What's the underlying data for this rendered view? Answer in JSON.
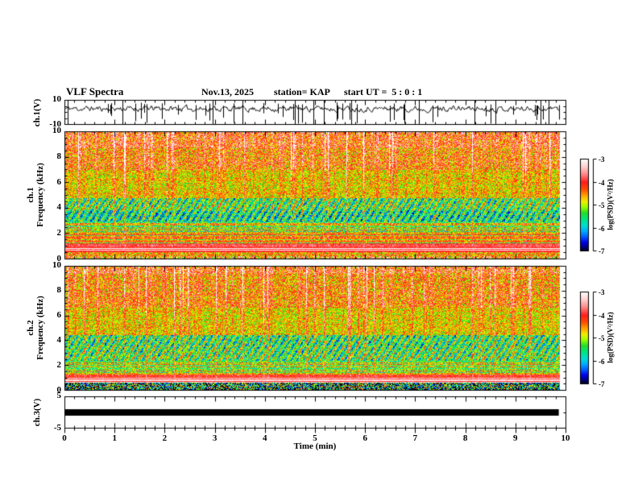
{
  "header": {
    "title": "VLF Spectra",
    "date": "Nov.13, 2025",
    "station": "station= KAP",
    "start_ut": "start UT =  5 : 0 : 1"
  },
  "chart_data": {
    "type": "heatmap",
    "title": "VLF Spectra",
    "xaxis": {
      "label": "Time (min)",
      "min": 0,
      "max": 10,
      "tick_labels": [
        "0",
        "1",
        "2",
        "3",
        "4",
        "5",
        "6",
        "7",
        "8",
        "9",
        "10"
      ],
      "minor_per_major": 4
    },
    "colorbar": {
      "label": "log(PSD)(V²/Hz)",
      "tick_labels": [
        "-3",
        "-4",
        "-5",
        "-6",
        "-7"
      ],
      "vmax": -3,
      "vmin": -7,
      "gradient_top_to_bottom": [
        "#ffffff",
        "#ffd2d2",
        "#ff8c8c",
        "#ff1e1e",
        "#ff5000",
        "#ffaa00",
        "#f0f000",
        "#96ff00",
        "#28dc28",
        "#00e682",
        "#00dcd2",
        "#00aaff",
        "#005aff",
        "#0000e6",
        "#000082",
        "#000000"
      ]
    },
    "panels": [
      {
        "id": "ch1_waveform",
        "kind": "line",
        "ylabel": "ch.1(V)",
        "ymin": -10,
        "ymax": 10,
        "ytick_labels": [
          "10",
          "-10"
        ],
        "ytick_values": [
          10,
          -10
        ],
        "signal": {
          "seed": 11,
          "mean_v": 3,
          "noise_v": 2.6,
          "down_spikes": 42,
          "full_lines": 13,
          "t_end_frac": 0.987
        }
      },
      {
        "id": "ch1_spectrogram",
        "kind": "spectrogram",
        "ylabel1": "ch.1",
        "ylabel2": "Frequency (kHz)",
        "ymin": 0,
        "ymax": 10,
        "ytick_labels": [
          "10",
          "8",
          "6",
          "4",
          "2",
          "0"
        ],
        "ytick_values": [
          10,
          8,
          6,
          4,
          2,
          0
        ],
        "seed": 7,
        "bands": [
          {
            "f0": 0.0,
            "f1": 0.13,
            "base": -4.2,
            "var": 0.9
          },
          {
            "f0": 0.13,
            "f1": 0.3,
            "base": -4.45,
            "var": 0.85
          },
          {
            "f0": 0.3,
            "f1": 0.52,
            "base": -4.8,
            "var": 0.6
          },
          {
            "f0": 0.52,
            "f1": 0.62,
            "base": -5.4,
            "var": 0.8,
            "blob": true
          },
          {
            "f0": 0.62,
            "f1": 0.7,
            "base": -5.7,
            "var": 0.8,
            "blob": true
          },
          {
            "f0": 0.7,
            "f1": 0.8,
            "base": -5.1,
            "var": 0.7,
            "stripes": true
          },
          {
            "f0": 0.8,
            "f1": 0.88,
            "base": -4.8,
            "var": 0.55,
            "stripes": true,
            "red_rows": 0.08
          },
          {
            "f0": 0.88,
            "f1": 0.9,
            "base": -3.9,
            "var": 0.3
          },
          {
            "f0": 0.9,
            "f1": 0.935,
            "base": -3.12,
            "var": 0.15,
            "red_rows": 0.3
          },
          {
            "f0": 0.935,
            "f1": 0.97,
            "base": -4.6,
            "var": 0.8,
            "red_rows": 0.1
          },
          {
            "f0": 0.97,
            "f1": 1.0,
            "base": -4.3,
            "var": 1.2
          }
        ],
        "streaks": {
          "strong_p": 0.07,
          "weak_p": 0.18,
          "depth": 0.85
        }
      },
      {
        "id": "ch2_spectrogram",
        "kind": "spectrogram",
        "ylabel1": "ch.2",
        "ylabel2": "Frequency (kHz)",
        "ymin": 0,
        "ymax": 10,
        "ytick_labels": [
          "10",
          "8",
          "6",
          "4",
          "2",
          "0"
        ],
        "ytick_values": [
          10,
          8,
          6,
          4,
          2,
          0
        ],
        "seed": 13,
        "bands": [
          {
            "f0": 0.0,
            "f1": 0.06,
            "base": -4.25,
            "var": 0.95
          },
          {
            "f0": 0.06,
            "f1": 0.33,
            "base": -4.5,
            "var": 0.8
          },
          {
            "f0": 0.33,
            "f1": 0.55,
            "base": -4.85,
            "var": 0.6
          },
          {
            "f0": 0.55,
            "f1": 0.66,
            "base": -5.5,
            "var": 0.8,
            "blob": true
          },
          {
            "f0": 0.66,
            "f1": 0.76,
            "base": -5.35,
            "var": 0.8,
            "blob": true
          },
          {
            "f0": 0.76,
            "f1": 0.87,
            "base": -5.0,
            "var": 0.65,
            "stripes": true,
            "red_rows": 0.06
          },
          {
            "f0": 0.87,
            "f1": 0.895,
            "base": -4.0,
            "var": 0.35
          },
          {
            "f0": 0.895,
            "f1": 0.93,
            "base": -3.25,
            "var": 0.2,
            "red_rows": 0.2
          },
          {
            "f0": 0.93,
            "f1": 1.0,
            "base": -6.0,
            "var": 1.8
          }
        ],
        "streaks": {
          "strong_p": 0.07,
          "weak_p": 0.18,
          "depth": 0.85
        }
      },
      {
        "id": "ch3_waveform",
        "kind": "flatline",
        "ylabel": "ch.3(V)",
        "ymin": -5,
        "ymax": 5,
        "ytick_labels": [
          "5",
          "-5"
        ],
        "ytick_values": [
          5,
          -5
        ],
        "value": 0,
        "bar_thickness_v": 2,
        "t_start": 0,
        "t_end_frac": 0.985
      }
    ]
  }
}
